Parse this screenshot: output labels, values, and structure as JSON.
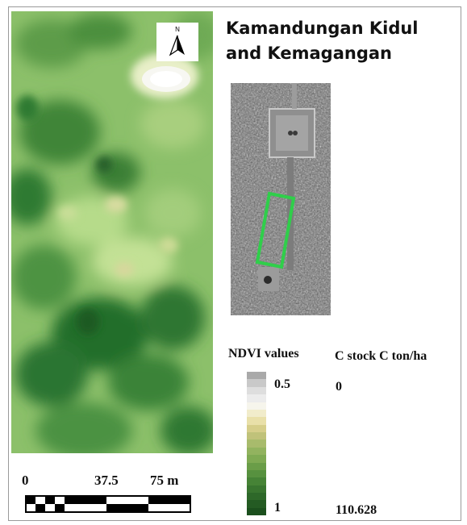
{
  "title_line1": "Kamandungan Kidul",
  "title_line2": "and Kemagangan",
  "north_arrow": {
    "icon": "north-arrow-icon",
    "label": "N"
  },
  "legend": {
    "ndvi_title": "NDVI values",
    "ndvi_max": "0.5",
    "ndvi_min": "1",
    "cstock_title": "C stock C ton/ha",
    "cstock_low": "0",
    "cstock_high": "110.628",
    "ramp_colors": [
      "#a9a9a9",
      "#c9c9c9",
      "#dedede",
      "#ececec",
      "#f6f5ec",
      "#f1eccb",
      "#e9e0a9",
      "#d6ce8a",
      "#c0c27a",
      "#a8bb6c",
      "#92b35f",
      "#7faa53",
      "#6a9d48",
      "#57913f",
      "#468336",
      "#39752f",
      "#2e6829",
      "#245b23",
      "#1b4f1d"
    ]
  },
  "scale_bar": {
    "labels": [
      "0",
      "37.5",
      "75 m"
    ]
  },
  "colors": {
    "map_light": "#b8d98a",
    "map_mid": "#7fb65a",
    "map_dark": "#2f7a34",
    "highlight_box": "#2fcf4a"
  }
}
